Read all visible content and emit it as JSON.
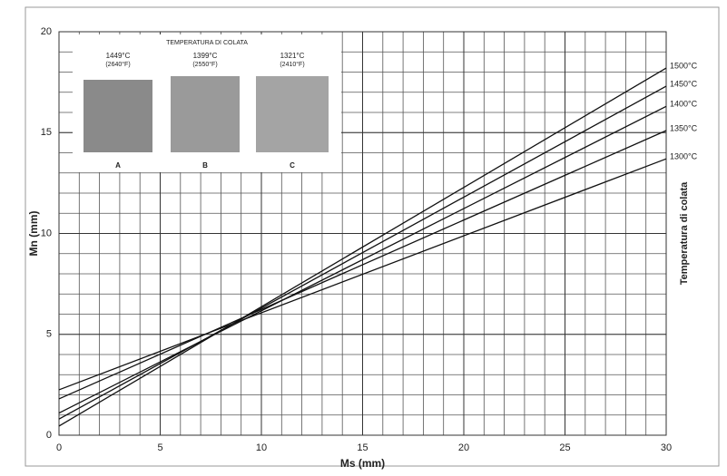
{
  "chart_data": {
    "type": "line",
    "x_label": "Ms (mm)",
    "y_label": "Mn (mm)",
    "y2_label": "Temperatura di colata",
    "x": [
      0,
      30
    ],
    "series": [
      {
        "name": "1500°C",
        "color": "#111111",
        "values": [
          0.45,
          18.2
        ]
      },
      {
        "name": "1450°C",
        "color": "#111111",
        "values": [
          0.8,
          17.3
        ]
      },
      {
        "name": "1400°C",
        "color": "#111111",
        "values": [
          1.1,
          16.3
        ]
      },
      {
        "name": "1350°C",
        "color": "#111111",
        "values": [
          1.8,
          15.1
        ]
      },
      {
        "name": "1300°C",
        "color": "#111111",
        "values": [
          2.25,
          13.7
        ]
      }
    ],
    "xlim": [
      0,
      30
    ],
    "ylim": [
      0,
      20
    ],
    "xticks": [
      0,
      5,
      10,
      15,
      20,
      25,
      30
    ],
    "yticks": [
      0,
      5,
      10,
      15,
      20
    ],
    "grid_step": 1,
    "grid": true,
    "inset": {
      "title": "TEMPERATURA DI COLATA",
      "panels": [
        {
          "temp_c": "1449°C",
          "temp_f": "(2640°F)",
          "label": "A"
        },
        {
          "temp_c": "1399°C",
          "temp_f": "(2550°F)",
          "label": "B"
        },
        {
          "temp_c": "1321°C",
          "temp_f": "(2410°F)",
          "label": "C"
        }
      ]
    }
  }
}
